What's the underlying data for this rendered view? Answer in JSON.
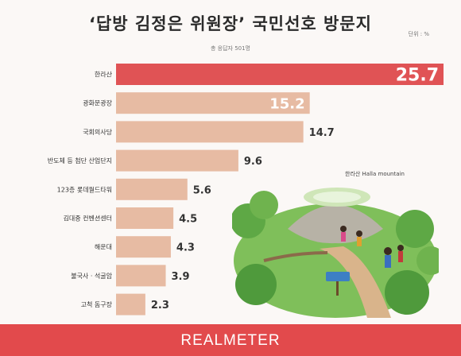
{
  "title": "‘답방 김정은 위원장’ 국민선호 방문지",
  "unit": "단위 : %",
  "subtitle": "총 응답자 501명",
  "illustration_label": "한라산 Halla mountain",
  "brand": "REALMETER",
  "colors": {
    "highlight": "#e05355",
    "bar": "#e7bba3",
    "footer": "#e24a4c"
  },
  "chart_data": {
    "type": "bar",
    "orientation": "horizontal",
    "categories": [
      "한라산",
      "광화문광장",
      "국회의사당",
      "반도체 등 첨단 산업단지",
      "123층 롯데월드타워",
      "김대중 컨벤션센터",
      "해운대",
      "불국사 · 석굴암",
      "고척 돔구장"
    ],
    "values": [
      25.7,
      15.2,
      14.7,
      9.6,
      5.6,
      4.5,
      4.3,
      3.9,
      2.3
    ],
    "labels": [
      "25.7",
      "15.2",
      "14.7",
      "9.6",
      "5.6",
      "4.5",
      "4.3",
      "3.9",
      "2.3"
    ],
    "highlight_index": 0,
    "title": "‘답방 김정은 위원장’ 국민선호 방문지",
    "xlabel": "",
    "ylabel": "",
    "xlim": [
      0,
      25.7
    ],
    "grid": false,
    "legend": "none"
  }
}
